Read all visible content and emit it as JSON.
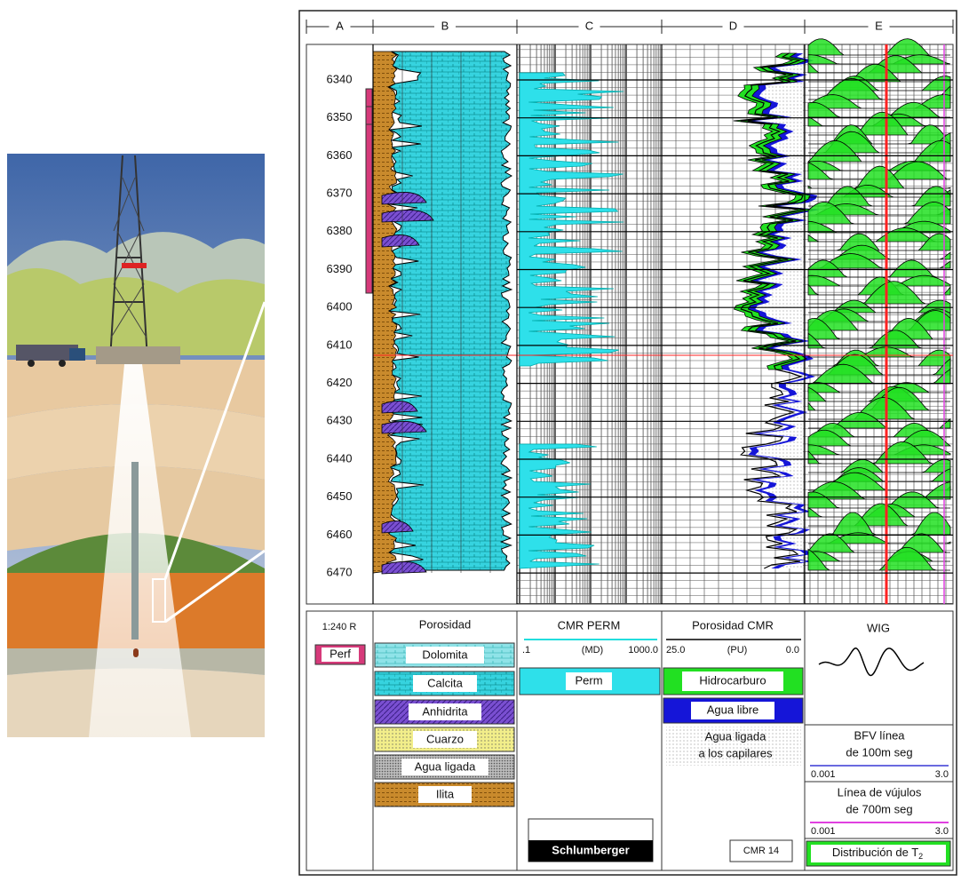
{
  "tracks": [
    "A",
    "B",
    "C",
    "D",
    "E"
  ],
  "depths": [
    6340,
    6350,
    6360,
    6370,
    6380,
    6390,
    6400,
    6410,
    6420,
    6430,
    6440,
    6450,
    6460,
    6470
  ],
  "legend": {
    "scale": "1:240 R",
    "perf": "Perf",
    "porosity": {
      "title": "Porosidad",
      "items": [
        "Dolomita",
        "Calcita",
        "Anhidrita",
        "Cuarzo",
        "Agua ligada",
        "Ilita"
      ]
    },
    "perm": {
      "title": "CMR PERM",
      "scale": [
        ".1",
        "(MD)",
        "1000.0"
      ],
      "item": "Perm"
    },
    "cmr": {
      "title": "Porosidad CMR",
      "scale": [
        "25.0",
        "(PU)",
        "0.0"
      ],
      "items": [
        "Hidrocarburo",
        "Agua libre"
      ],
      "bound": [
        "Agua ligada",
        "a los capilares"
      ]
    },
    "wig": {
      "title": "WIG",
      "bfv": [
        "BFV línea",
        "de 100m seg"
      ],
      "bfv_scale": [
        "0.001",
        "3.0"
      ],
      "vug": [
        "Línea de vújulos",
        "de 700m seg"
      ],
      "vug_scale": [
        "0.001",
        "3.0"
      ],
      "t2": "Distribución de T",
      "t2_sub": "2"
    },
    "logo": "Schlumberger",
    "tag": "CMR 14"
  }
}
